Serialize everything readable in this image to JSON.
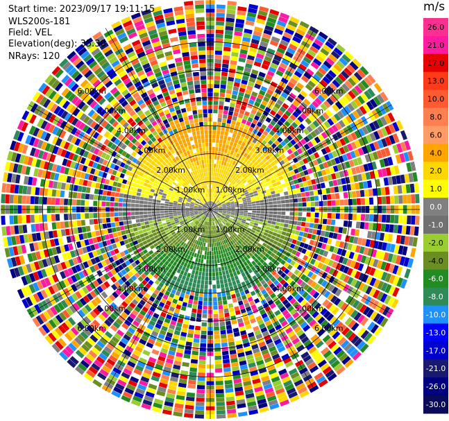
{
  "header": {
    "start_time": "Start time: 2023/09/17 19:11:15",
    "instrument": "WLS200s-181",
    "field": "Field: VEL",
    "elevation": "Elevation(deg): 35.30",
    "nrays": "NRays: 120"
  },
  "chart_data": {
    "type": "heatmap",
    "projection": "polar-ppi",
    "field": "VEL",
    "unit": "m/s",
    "nrays": 120,
    "elevation_deg": 35.3,
    "range_rings_km": [
      1.0,
      2.0,
      3.0,
      4.0,
      5.0,
      6.0
    ],
    "ring_labels": [
      "1.00km",
      "2.00km",
      "3.00km",
      "4.00km",
      "5.00km",
      "6.00km"
    ],
    "max_range_km": 7.5,
    "colorbar": {
      "unit": "m/s",
      "range": [
        -30.0,
        30.0
      ],
      "tick_labels": [
        "26.0",
        "21.0",
        "17.0",
        "13.0",
        "10.0",
        "8.0",
        "6.0",
        "4.0",
        "2.0",
        "1.0",
        "0.0",
        "-1.0",
        "-2.0",
        "-4.0",
        "-6.0",
        "-8.0",
        "-10.0",
        "-13.0",
        "-17.0",
        "-21.0",
        "-26.0",
        "-30.0"
      ],
      "levels": [
        {
          "lo": 26.0,
          "hi": 30.0,
          "color": "#ff2f92"
        },
        {
          "lo": 21.0,
          "hi": 26.0,
          "color": "#ff1aa0"
        },
        {
          "lo": 17.0,
          "hi": 21.0,
          "color": "#e60000"
        },
        {
          "lo": 13.0,
          "hi": 17.0,
          "color": "#ff3a1a"
        },
        {
          "lo": 10.0,
          "hi": 13.0,
          "color": "#ff5a32"
        },
        {
          "lo": 8.0,
          "hi": 10.0,
          "color": "#ff7f50"
        },
        {
          "lo": 6.0,
          "hi": 8.0,
          "color": "#ff9c66"
        },
        {
          "lo": 4.0,
          "hi": 6.0,
          "color": "#ffa500"
        },
        {
          "lo": 2.0,
          "hi": 4.0,
          "color": "#ffd700"
        },
        {
          "lo": 1.0,
          "hi": 2.0,
          "color": "#ffff00"
        },
        {
          "lo": 0.0,
          "hi": 1.0,
          "color": "#808080"
        },
        {
          "lo": -1.0,
          "hi": 0.0,
          "color": "#707070"
        },
        {
          "lo": -2.0,
          "hi": -1.0,
          "color": "#9acd32"
        },
        {
          "lo": -4.0,
          "hi": -2.0,
          "color": "#6b8e23"
        },
        {
          "lo": -6.0,
          "hi": -4.0,
          "color": "#228b22"
        },
        {
          "lo": -8.0,
          "hi": -6.0,
          "color": "#2e8b57"
        },
        {
          "lo": -10.0,
          "hi": -8.0,
          "color": "#1e90ff"
        },
        {
          "lo": -13.0,
          "hi": -10.0,
          "color": "#0000ff"
        },
        {
          "lo": -17.0,
          "hi": -13.0,
          "color": "#0000cd"
        },
        {
          "lo": -21.0,
          "hi": -17.0,
          "color": "#191970"
        },
        {
          "lo": -26.0,
          "hi": -21.0,
          "color": "#000080"
        },
        {
          "lo": -30.0,
          "hi": -26.0,
          "color": "#0a0a5a"
        }
      ]
    },
    "noise_palette": [
      "#ff1aa0",
      "#e60000",
      "#0000cd",
      "#ffff00",
      "#ffa500",
      "#228b22",
      "#6b8e23",
      "#000080",
      "#ff7f50",
      "#9acd32",
      "#1e90ff",
      "#808080",
      "#2e8b57",
      "#ffd700",
      "#ff5a32",
      "#191970"
    ]
  }
}
